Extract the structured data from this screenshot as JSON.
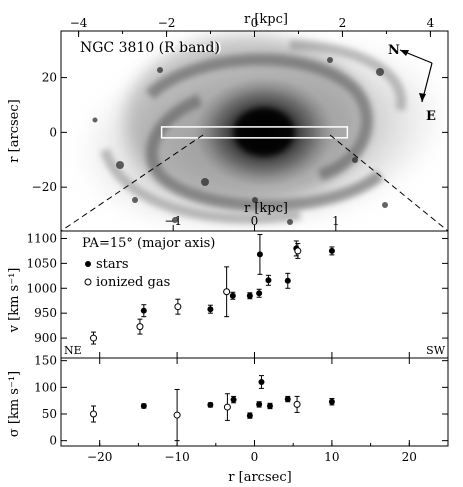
{
  "chart_data": [
    {
      "type": "image",
      "title": "NGC 3810 (R band)",
      "top_axis": {
        "label": "r [kpc]",
        "ticks": [
          -4,
          -2,
          0,
          2,
          4
        ],
        "range": [
          -4.4,
          4.4
        ]
      },
      "ylabel": "r [arcsec]",
      "y_ticks": [
        20,
        0,
        -20
      ],
      "ylim": [
        -36,
        37
      ],
      "xlim": [
        -25,
        25
      ],
      "slit": {
        "x_range": [
          -12,
          12
        ],
        "y_range": [
          -0.9,
          0.9
        ]
      },
      "compass": {
        "north": "N",
        "east": "E"
      },
      "inner_axis": {
        "label": "r [kpc]",
        "ticks": [
          -1,
          0,
          1
        ]
      },
      "background": "#ffffff",
      "galaxy_color": "#1a1a1a"
    },
    {
      "type": "scatter",
      "ylabel": "v [km s⁻¹]",
      "annotation": "PA=15° (major axis)",
      "corner_left": "NE",
      "corner_right": "SW",
      "legend": [
        "stars",
        "ionized gas"
      ],
      "legend_position": "top-left",
      "xlim": [
        -25,
        25
      ],
      "ylim": [
        860,
        1115
      ],
      "y_ticks": [
        900,
        950,
        1000,
        1050,
        1100
      ],
      "series": [
        {
          "name": "stars",
          "marker": "filled-circle",
          "points": [
            {
              "x": -14.3,
              "y": 955,
              "err": 12
            },
            {
              "x": -5.7,
              "y": 958,
              "err": 8
            },
            {
              "x": -2.8,
              "y": 985,
              "err": 7
            },
            {
              "x": -0.6,
              "y": 985,
              "err": 6
            },
            {
              "x": 0.6,
              "y": 990,
              "err": 8
            },
            {
              "x": 0.7,
              "y": 1068,
              "err": 40
            },
            {
              "x": 1.8,
              "y": 1016,
              "err": 10
            },
            {
              "x": 4.3,
              "y": 1015,
              "err": 15
            },
            {
              "x": 5.4,
              "y": 1080,
              "err": 15
            },
            {
              "x": 10.0,
              "y": 1075,
              "err": 8
            }
          ]
        },
        {
          "name": "ionized gas",
          "marker": "open-circle",
          "points": [
            {
              "x": -20.8,
              "y": 900,
              "err": 12
            },
            {
              "x": -14.8,
              "y": 923,
              "err": 15
            },
            {
              "x": -9.9,
              "y": 963,
              "err": 15
            },
            {
              "x": -3.6,
              "y": 993,
              "err": 50
            },
            {
              "x": 5.6,
              "y": 1075,
              "err": 15
            }
          ]
        }
      ]
    },
    {
      "type": "scatter",
      "xlabel": "r [arcsec]",
      "ylabel": "σ [km s⁻¹]",
      "xlim": [
        -25,
        25
      ],
      "ylim": [
        -10,
        155
      ],
      "x_ticks": [
        -20,
        -10,
        0,
        10,
        20
      ],
      "y_ticks": [
        0,
        50,
        100,
        150
      ],
      "series": [
        {
          "name": "stars",
          "marker": "filled-circle",
          "points": [
            {
              "x": -14.3,
              "y": 65,
              "err": 4
            },
            {
              "x": -5.7,
              "y": 67,
              "err": 4
            },
            {
              "x": -2.7,
              "y": 77,
              "err": 6
            },
            {
              "x": -0.6,
              "y": 47,
              "err": 5
            },
            {
              "x": 0.6,
              "y": 68,
              "err": 5
            },
            {
              "x": 0.9,
              "y": 110,
              "err": 12
            },
            {
              "x": 2.0,
              "y": 65,
              "err": 5
            },
            {
              "x": 4.3,
              "y": 78,
              "err": 5
            },
            {
              "x": 10.0,
              "y": 73,
              "err": 6
            }
          ]
        },
        {
          "name": "ionized gas",
          "marker": "open-circle",
          "points": [
            {
              "x": -20.8,
              "y": 50,
              "err": 15
            },
            {
              "x": -10.0,
              "y": 48,
              "err": 48
            },
            {
              "x": -3.5,
              "y": 63,
              "err": 25
            },
            {
              "x": 5.5,
              "y": 68,
              "err": 15
            }
          ]
        }
      ]
    }
  ]
}
